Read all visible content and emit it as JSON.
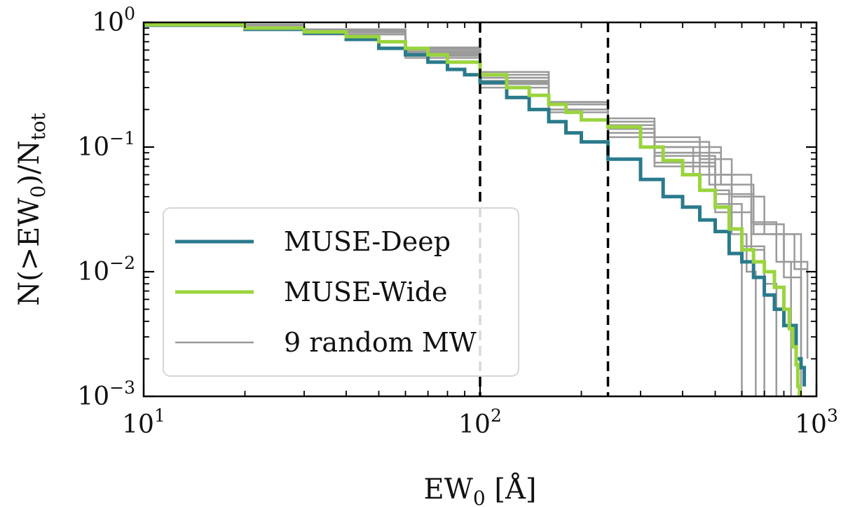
{
  "chart_data": {
    "type": "line",
    "xscale": "log",
    "yscale": "log",
    "xlim": [
      10,
      1000
    ],
    "ylim": [
      0.001,
      1
    ],
    "xlabel": "EW₀ [Å]",
    "ylabel": "N(>EW₀)/N_tot",
    "xlabel_parts": {
      "base": "EW",
      "sub": "0",
      "suffix": " [Å]"
    },
    "ylabel_parts": {
      "pre": "N(>EW",
      "sub1": "0",
      "mid": ")/N",
      "sub2": "tot"
    },
    "xticks": [
      {
        "value": 10,
        "base": "10",
        "exp": "1"
      },
      {
        "value": 100,
        "base": "10",
        "exp": "2"
      },
      {
        "value": 1000,
        "base": "10",
        "exp": "3"
      }
    ],
    "yticks": [
      {
        "value": 1,
        "base": "10",
        "exp": "0"
      },
      {
        "value": 0.1,
        "base": "10",
        "exp": "−1"
      },
      {
        "value": 0.01,
        "base": "10",
        "exp": "−2"
      },
      {
        "value": 0.001,
        "base": "10",
        "exp": "−3"
      }
    ],
    "vlines": [
      100,
      240
    ],
    "legend_position": "lower-left",
    "legend": [
      {
        "label": "MUSE-Deep",
        "color": "#2a7a8c",
        "width": 5
      },
      {
        "label": "MUSE-Wide",
        "color": "#9ad43e",
        "width": 5
      },
      {
        "label": "9 random MW",
        "color": "#999999",
        "width": 2.5
      }
    ],
    "series": [
      {
        "name": "MUSE-Deep",
        "color": "#2a7a8c",
        "width": 5,
        "x": [
          10,
          20,
          30,
          40,
          50,
          60,
          70,
          80,
          90,
          100,
          120,
          140,
          160,
          180,
          200,
          240,
          300,
          350,
          400,
          450,
          500,
          550,
          600,
          650,
          700,
          750,
          800,
          850,
          870,
          900,
          920
        ],
        "y": [
          0.95,
          0.88,
          0.82,
          0.73,
          0.62,
          0.55,
          0.48,
          0.42,
          0.38,
          0.33,
          0.25,
          0.2,
          0.16,
          0.13,
          0.11,
          0.08,
          0.055,
          0.04,
          0.033,
          0.026,
          0.021,
          0.014,
          0.012,
          0.009,
          0.0065,
          0.005,
          0.0037,
          0.0037,
          0.002,
          0.0017,
          0.0012
        ]
      },
      {
        "name": "MUSE-Wide",
        "color": "#9ad43e",
        "width": 5,
        "x": [
          10,
          20,
          30,
          40,
          50,
          60,
          70,
          80,
          100,
          120,
          140,
          160,
          180,
          200,
          240,
          300,
          350,
          400,
          450,
          500,
          550,
          600,
          650,
          700,
          750,
          800,
          830,
          850,
          870,
          880,
          890
        ],
        "y": [
          0.96,
          0.9,
          0.84,
          0.77,
          0.7,
          0.62,
          0.55,
          0.48,
          0.38,
          0.3,
          0.26,
          0.22,
          0.19,
          0.165,
          0.145,
          0.1,
          0.078,
          0.06,
          0.045,
          0.033,
          0.022,
          0.015,
          0.012,
          0.01,
          0.0075,
          0.005,
          0.0035,
          0.0025,
          0.0018,
          0.0012,
          0.001
        ]
      }
    ],
    "background_series": [
      {
        "name": "MW1",
        "x": [
          10,
          30,
          60,
          100,
          160,
          240,
          330,
          480,
          560,
          620,
          660
        ],
        "y": [
          0.96,
          0.88,
          0.62,
          0.4,
          0.23,
          0.16,
          0.11,
          0.05,
          0.02,
          0.01,
          0.001
        ]
      },
      {
        "name": "MW2",
        "x": [
          10,
          30,
          60,
          100,
          160,
          240,
          330,
          500,
          600,
          700,
          760
        ],
        "y": [
          0.95,
          0.83,
          0.52,
          0.3,
          0.19,
          0.12,
          0.075,
          0.035,
          0.016,
          0.008,
          0.001
        ]
      },
      {
        "name": "MW3",
        "x": [
          10,
          30,
          60,
          100,
          160,
          240,
          330,
          520,
          640,
          760,
          840
        ],
        "y": [
          0.96,
          0.86,
          0.58,
          0.36,
          0.22,
          0.15,
          0.1,
          0.06,
          0.025,
          0.012,
          0.001
        ]
      },
      {
        "name": "MW4",
        "x": [
          10,
          30,
          60,
          100,
          160,
          240,
          300,
          430,
          560,
          700,
          900
        ],
        "y": [
          0.95,
          0.85,
          0.6,
          0.38,
          0.23,
          0.15,
          0.1,
          0.06,
          0.04,
          0.02,
          0.002
        ]
      },
      {
        "name": "MW5",
        "x": [
          10,
          30,
          60,
          100,
          160,
          240,
          330,
          450,
          550,
          600
        ],
        "y": [
          0.95,
          0.8,
          0.55,
          0.32,
          0.2,
          0.14,
          0.09,
          0.045,
          0.014,
          0.001
        ]
      },
      {
        "name": "MW6",
        "x": [
          10,
          30,
          60,
          100,
          160,
          240,
          330,
          500,
          640,
          860,
          940
        ],
        "y": [
          0.95,
          0.84,
          0.58,
          0.36,
          0.2,
          0.13,
          0.07,
          0.03,
          0.02,
          0.0105,
          0.0105
        ]
      },
      {
        "name": "MW7",
        "x": [
          10,
          30,
          60,
          100,
          160,
          240,
          330,
          500,
          650,
          800,
          900
        ],
        "y": [
          0.95,
          0.84,
          0.56,
          0.34,
          0.22,
          0.14,
          0.085,
          0.042,
          0.02,
          0.009,
          0.001
        ]
      },
      {
        "name": "MW8",
        "x": [
          10,
          30,
          60,
          100,
          160,
          240,
          330,
          450,
          560,
          640,
          700
        ],
        "y": [
          0.96,
          0.87,
          0.63,
          0.4,
          0.22,
          0.17,
          0.12,
          0.08,
          0.04,
          0.015,
          0.001
        ]
      },
      {
        "name": "MW9",
        "x": [
          10,
          30,
          60,
          100,
          160,
          240,
          330,
          520,
          650,
          800,
          940
        ],
        "y": [
          0.95,
          0.83,
          0.54,
          0.33,
          0.2,
          0.14,
          0.09,
          0.05,
          0.024,
          0.012,
          0.002
        ]
      }
    ]
  }
}
